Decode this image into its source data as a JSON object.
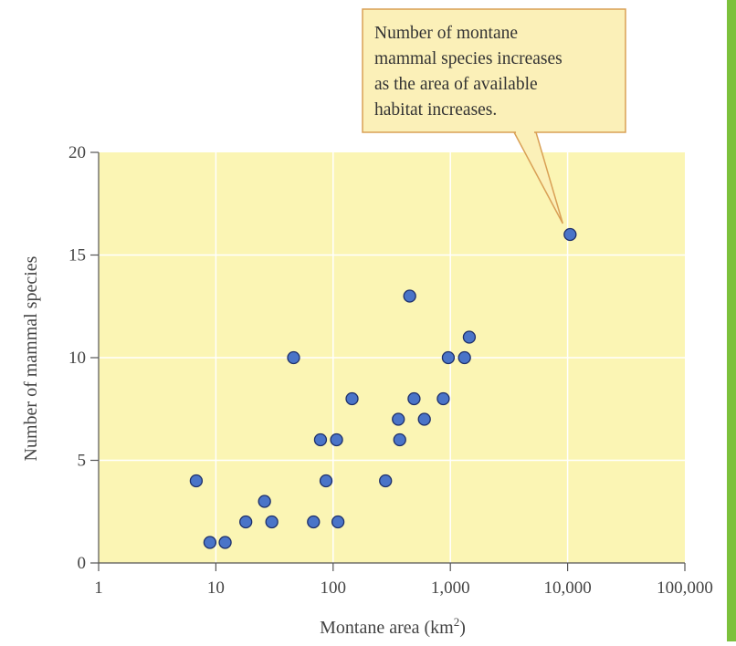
{
  "chart_data": {
    "type": "scatter",
    "title": "",
    "xlabel": "Montane area (km",
    "xlabel_superscript": "2",
    "xlabel_suffix": ")",
    "ylabel": "Number of mammal species",
    "xscale": "log",
    "xlim": [
      1,
      100000
    ],
    "ylim": [
      0,
      20
    ],
    "grid": true,
    "x_ticks": [
      {
        "value": 1,
        "label": "1"
      },
      {
        "value": 10,
        "label": "10"
      },
      {
        "value": 100,
        "label": "100"
      },
      {
        "value": 1000,
        "label": "1,000"
      },
      {
        "value": 10000,
        "label": "10,000"
      },
      {
        "value": 100000,
        "label": "100,000"
      }
    ],
    "y_ticks": [
      {
        "value": 0,
        "label": "0"
      },
      {
        "value": 5,
        "label": "5"
      },
      {
        "value": 10,
        "label": "10"
      },
      {
        "value": 15,
        "label": "15"
      },
      {
        "value": 20,
        "label": "20"
      }
    ],
    "points": [
      {
        "x": 6.8,
        "y": 4
      },
      {
        "x": 8.9,
        "y": 1
      },
      {
        "x": 12,
        "y": 1
      },
      {
        "x": 18,
        "y": 2
      },
      {
        "x": 26,
        "y": 3
      },
      {
        "x": 30,
        "y": 2
      },
      {
        "x": 46,
        "y": 10
      },
      {
        "x": 68,
        "y": 2
      },
      {
        "x": 78,
        "y": 6
      },
      {
        "x": 87,
        "y": 4
      },
      {
        "x": 107,
        "y": 6
      },
      {
        "x": 110,
        "y": 2
      },
      {
        "x": 145,
        "y": 8
      },
      {
        "x": 280,
        "y": 4
      },
      {
        "x": 360,
        "y": 7
      },
      {
        "x": 370,
        "y": 6
      },
      {
        "x": 450,
        "y": 13
      },
      {
        "x": 490,
        "y": 8
      },
      {
        "x": 600,
        "y": 7
      },
      {
        "x": 870,
        "y": 8
      },
      {
        "x": 960,
        "y": 10
      },
      {
        "x": 1320,
        "y": 10
      },
      {
        "x": 1450,
        "y": 11
      },
      {
        "x": 10500,
        "y": 16
      }
    ],
    "annotation": {
      "lines": [
        "Number of montane",
        "mammal species increases",
        "as the area of available",
        "habitat increases."
      ],
      "target_point_index": 23
    }
  },
  "colors": {
    "plot_background": "#fbf5b4",
    "gridline": "#ffffff",
    "point_fill": "#4a74c8",
    "point_stroke": "#1d2f6a",
    "callout_fill": "#fbf0b8",
    "callout_border": "#d9a055",
    "side_bar": "#7cc13c"
  }
}
